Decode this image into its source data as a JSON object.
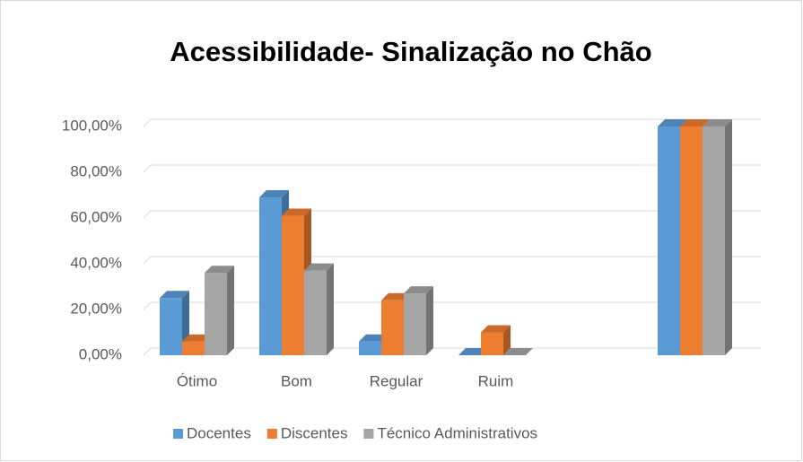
{
  "chart_data": {
    "type": "bar3d",
    "title": "Acessibilidade- Sinalização no Chão",
    "categories": [
      "Ótimo",
      "Bom",
      "Regular",
      "Ruim",
      null,
      null
    ],
    "series": [
      {
        "name": "Docentes",
        "color": "#5b9bd5",
        "values": [
          25,
          69,
          6,
          0,
          null,
          100
        ]
      },
      {
        "name": "Discentes",
        "color": "#ed7d31",
        "values": [
          6,
          61,
          24,
          10,
          null,
          100
        ]
      },
      {
        "name": "Técnico Administrativos",
        "color": "#a5a5a5",
        "values": [
          36,
          37,
          27,
          0,
          null,
          100
        ]
      }
    ],
    "ylim": [
      0,
      100
    ],
    "yticks": [
      {
        "value": 0,
        "label": "0,00%"
      },
      {
        "value": 20,
        "label": "20,00%"
      },
      {
        "value": 40,
        "label": "40,00%"
      },
      {
        "value": 60,
        "label": "60,00%"
      },
      {
        "value": 80,
        "label": "80,00%"
      },
      {
        "value": 100,
        "label": "100,00%"
      }
    ],
    "grid": true,
    "legend": "bottom"
  }
}
